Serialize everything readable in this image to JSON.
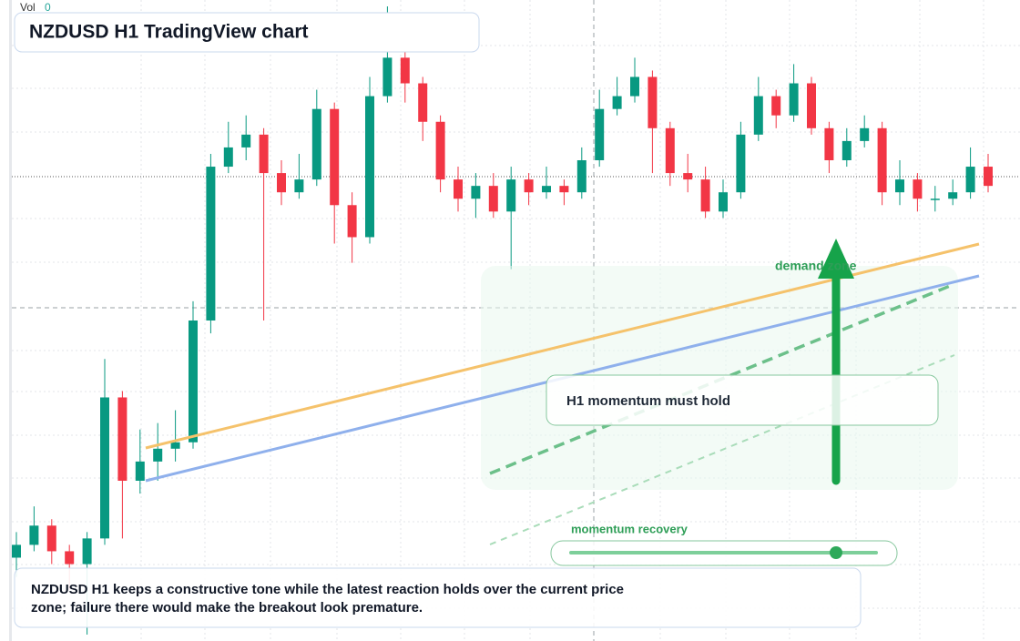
{
  "header": {
    "vol_label": "Vol",
    "vol_value": 0,
    "title": "NZDUSD H1 TradingView chart"
  },
  "chart_data": {
    "type": "candlestick",
    "ylim": [
      0,
      100
    ],
    "up_color": "#089981",
    "down_color": "#f23645",
    "open": [
      13,
      15,
      18,
      14,
      12,
      16,
      38,
      25,
      28,
      30,
      31,
      50,
      74,
      77,
      79,
      73,
      70,
      72,
      83,
      68,
      63,
      85,
      91,
      87,
      81,
      72,
      69,
      71,
      67,
      72,
      70,
      71,
      70,
      75,
      83,
      85,
      88,
      80,
      73,
      72,
      67,
      70,
      79,
      85,
      82,
      87,
      80,
      75,
      78,
      80,
      70,
      72,
      69,
      69,
      70,
      74
    ],
    "high": [
      17,
      21,
      19,
      15,
      17,
      44,
      39,
      33,
      34,
      36,
      53,
      76,
      81,
      82,
      80,
      75,
      76,
      86,
      84,
      70,
      88,
      99,
      92,
      88,
      82,
      74,
      73,
      73,
      74,
      73,
      74,
      72,
      77,
      86,
      88,
      91,
      89,
      81,
      76,
      74,
      72,
      81,
      88,
      86,
      90,
      88,
      81,
      80,
      82,
      81,
      75,
      73,
      71,
      72,
      77,
      76
    ],
    "low": [
      10,
      14,
      12,
      8,
      1,
      15,
      16,
      23,
      25,
      28,
      30,
      48,
      73,
      75,
      50,
      68,
      69,
      71,
      62,
      59,
      62,
      84,
      84,
      78,
      70,
      67,
      66,
      66,
      58,
      68,
      69,
      68,
      69,
      74,
      82,
      84,
      73,
      71,
      70,
      66,
      66,
      69,
      78,
      80,
      81,
      79,
      73,
      74,
      77,
      68,
      68,
      67,
      67,
      68,
      69,
      70
    ],
    "close": [
      15,
      18,
      14,
      12,
      16,
      38,
      25,
      28,
      30,
      31,
      50,
      74,
      77,
      79,
      73,
      70,
      72,
      83,
      68,
      63,
      85,
      91,
      87,
      81,
      72,
      69,
      71,
      67,
      72,
      70,
      71,
      70,
      75,
      83,
      85,
      88,
      80,
      73,
      72,
      67,
      70,
      79,
      85,
      82,
      87,
      80,
      75,
      78,
      80,
      70,
      72,
      69,
      69,
      70,
      74,
      71
    ]
  },
  "annotations": {
    "zone": "demand zone",
    "callout": "H1 momentum must hold",
    "gauge": "momentum recovery",
    "note_lines": [
      "NZDUSD H1 keeps a constructive tone while the latest reaction holds over the current price",
      "zone; failure there would make the breakout look premature."
    ]
  }
}
